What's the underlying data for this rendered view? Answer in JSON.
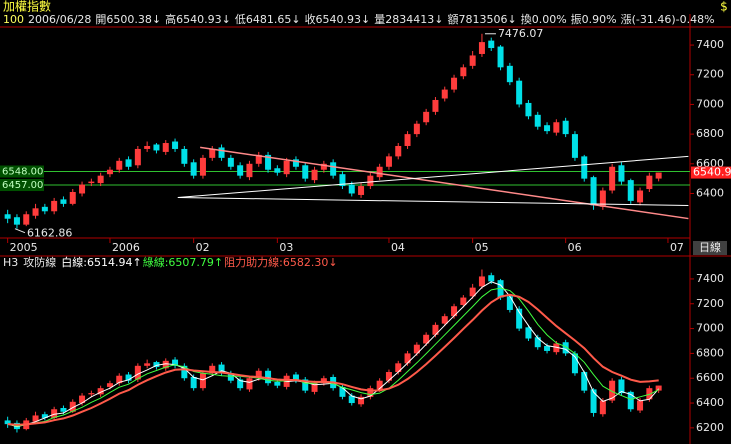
{
  "header": {
    "title": "加權指數",
    "icon": "$"
  },
  "chart_data": [
    {
      "type": "candlestick",
      "info": [
        {
          "text": "100",
          "color": "#ffff60"
        },
        {
          "text": "2006/06/28",
          "color": "#e8e8e8"
        },
        {
          "text": "開6500.38↓",
          "color": "#e8e8e8"
        },
        {
          "text": "高6540.93↓",
          "color": "#e8e8e8"
        },
        {
          "text": "低6481.65↓",
          "color": "#e8e8e8"
        },
        {
          "text": "收6540.93↓",
          "color": "#e8e8e8"
        },
        {
          "text": "量2834413↓",
          "color": "#e8e8e8"
        },
        {
          "text": "額7813506↓",
          "color": "#e8e8e8"
        },
        {
          "text": "換0.00%",
          "color": "#e8e8e8"
        },
        {
          "text": "振0.90%",
          "color": "#e8e8e8"
        },
        {
          "text": "漲(-31.46)-0.48%",
          "color": "#e8e8e8"
        }
      ],
      "categories": [
        "2005",
        null,
        null,
        null,
        null,
        null,
        null,
        null,
        null,
        null,
        null,
        "2006",
        null,
        null,
        null,
        null,
        null,
        null,
        null,
        null,
        "02",
        null,
        null,
        null,
        null,
        null,
        null,
        null,
        null,
        "03",
        null,
        null,
        null,
        null,
        null,
        null,
        null,
        null,
        null,
        null,
        null,
        "04",
        null,
        null,
        null,
        null,
        null,
        null,
        null,
        null,
        "05",
        null,
        null,
        null,
        null,
        null,
        null,
        null,
        null,
        null,
        "06",
        null,
        null,
        null,
        null,
        null,
        null,
        null,
        null,
        null,
        null,
        "07"
      ],
      "open": [
        6260,
        6240,
        6190,
        6250,
        6310,
        6280,
        6360,
        6330,
        6400,
        6470,
        6470,
        6530,
        6560,
        6630,
        6590,
        6700,
        6730,
        6680,
        6750,
        6700,
        6610,
        6520,
        6640,
        6710,
        6640,
        6590,
        6510,
        6600,
        6660,
        6570,
        6530,
        6630,
        6590,
        6490,
        6560,
        6610,
        6530,
        6460,
        6390,
        6450,
        6510,
        6580,
        6650,
        6720,
        6800,
        6880,
        6950,
        7040,
        7100,
        7190,
        7260,
        7340,
        7430,
        7390,
        7260,
        7160,
        7010,
        6930,
        6860,
        6810,
        6890,
        6800,
        6650,
        6510,
        6310,
        6420,
        6590,
        6490,
        6340,
        6430,
        6500.38,
        null
      ],
      "high": [
        6290,
        6260,
        6280,
        6330,
        6330,
        6370,
        6380,
        6430,
        6480,
        6500,
        6540,
        6580,
        6640,
        6650,
        6720,
        6750,
        6740,
        6760,
        6770,
        6720,
        6630,
        6660,
        6720,
        6730,
        6660,
        6610,
        6620,
        6680,
        6680,
        6590,
        6640,
        6650,
        6610,
        6580,
        6620,
        6630,
        6550,
        6480,
        6470,
        6540,
        6600,
        6670,
        6740,
        6820,
        6890,
        6970,
        7050,
        7120,
        7200,
        7270,
        7360,
        7476.07,
        7450,
        7400,
        7280,
        7180,
        7030,
        6950,
        6880,
        6900,
        6910,
        6820,
        6660,
        6520,
        6440,
        6600,
        6610,
        6500,
        6440,
        6540,
        6540.93,
        null
      ],
      "low": [
        6200,
        6162.86,
        6180,
        6230,
        6260,
        6260,
        6310,
        6320,
        6380,
        6450,
        6450,
        6510,
        6540,
        6560,
        6570,
        6680,
        6670,
        6660,
        6680,
        6580,
        6500,
        6500,
        6620,
        6620,
        6560,
        6500,
        6490,
        6580,
        6540,
        6520,
        6510,
        6560,
        6480,
        6470,
        6540,
        6500,
        6430,
        6380,
        6370,
        6430,
        6490,
        6560,
        6630,
        6700,
        6780,
        6860,
        6930,
        7020,
        7080,
        7170,
        7240,
        7320,
        7360,
        7230,
        7130,
        6980,
        6900,
        6830,
        6800,
        6790,
        6780,
        6620,
        6480,
        6290,
        6290,
        6400,
        6460,
        6330,
        6320,
        6410,
        6481.65,
        null
      ],
      "close": [
        6230,
        6190,
        6260,
        6300,
        6280,
        6350,
        6330,
        6410,
        6460,
        6480,
        6520,
        6560,
        6620,
        6580,
        6700,
        6720,
        6690,
        6740,
        6700,
        6600,
        6520,
        6640,
        6700,
        6640,
        6580,
        6520,
        6600,
        6660,
        6560,
        6540,
        6620,
        6580,
        6500,
        6560,
        6600,
        6520,
        6450,
        6400,
        6450,
        6520,
        6580,
        6650,
        6720,
        6800,
        6870,
        6950,
        7030,
        7100,
        7180,
        7250,
        7330,
        7420,
        7380,
        7250,
        7150,
        7000,
        6920,
        6850,
        6820,
        6880,
        6800,
        6640,
        6500,
        6320,
        6420,
        6580,
        6480,
        6350,
        6420,
        6520,
        6540.93,
        null
      ],
      "up_color": "#ff3c3c",
      "down_color": "#00e0e8",
      "ylim": [
        6100,
        7515
      ],
      "yticks": [
        6400,
        6600,
        6800,
        7000,
        7200,
        7400
      ],
      "levels": [
        {
          "value": 6548,
          "label": "6548.00"
        },
        {
          "value": 6457,
          "label": "6457.00"
        }
      ],
      "level_color": "#30c030",
      "trendlines": [
        {
          "color": "#ff8a8a",
          "from": [
            20.7,
            6711
          ],
          "to": [
            73.2,
            6231
          ]
        },
        {
          "color": "#ffffff",
          "from": [
            18.3,
            6373
          ],
          "to": [
            73.2,
            6650
          ]
        },
        {
          "color": "#ffffff",
          "from": [
            18.3,
            6373
          ],
          "to": [
            73.2,
            6319
          ]
        }
      ],
      "price_marker": {
        "value": 6540.93,
        "label": "6540.9"
      },
      "period": "日線"
    },
    {
      "type": "line",
      "title": "H3",
      "name": "攻防線",
      "series": [
        {
          "name": "白線:6514.94↑",
          "color": "#ffffff",
          "values": [
            6230,
            6210,
            6227,
            6250,
            6280,
            6310,
            6320,
            6363,
            6400,
            6450,
            6487,
            6520,
            6567,
            6587,
            6633,
            6667,
            6703,
            6717,
            6710,
            6680,
            6607,
            6587,
            6620,
            6660,
            6640,
            6580,
            6567,
            6593,
            6607,
            6587,
            6573,
            6580,
            6567,
            6547,
            6553,
            6560,
            6523,
            6457,
            6433,
            6457,
            6517,
            6583,
            6650,
            6723,
            6797,
            6873,
            6950,
            7027,
            7103,
            7177,
            7253,
            7333,
            7377,
            7350,
            7260,
            7133,
            7023,
            6923,
            6863,
            6850,
            6833,
            6773,
            6647,
            6487,
            6413,
            6440,
            6493,
            6470,
            6417,
            6430,
            6514.94
          ]
        },
        {
          "name": "綠線:6507.79↑",
          "color": "#40ff40",
          "values": [
            6230,
            6215,
            6225,
            6240,
            6252,
            6284,
            6304,
            6334,
            6366,
            6406,
            6440,
            6486,
            6528,
            6552,
            6596,
            6636,
            6662,
            6690,
            6710,
            6690,
            6654,
            6640,
            6632,
            6620,
            6616,
            6616,
            6608,
            6600,
            6584,
            6576,
            6580,
            6592,
            6560,
            6560,
            6572,
            6556,
            6526,
            6506,
            6484,
            6468,
            6480,
            6520,
            6584,
            6654,
            6724,
            6798,
            6874,
            6950,
            7026,
            7102,
            7178,
            7256,
            7312,
            7326,
            7306,
            7240,
            7140,
            7034,
            6948,
            6884,
            6854,
            6798,
            6728,
            6628,
            6536,
            6492,
            6460,
            6430,
            6450,
            6470,
            6507.79
          ]
        },
        {
          "name": "阻力助力線:6582.30↓",
          "color": "#ff5a4a",
          "values": [
            6230,
            6225,
            6228,
            6236,
            6244,
            6262,
            6276,
            6300,
            6330,
            6360,
            6396,
            6434,
            6476,
            6504,
            6548,
            6584,
            6616,
            6646,
            6668,
            6672,
            6662,
            6656,
            6650,
            6646,
            6636,
            6624,
            6614,
            6610,
            6600,
            6590,
            6586,
            6586,
            6576,
            6570,
            6570,
            6566,
            6552,
            6530,
            6510,
            6500,
            6502,
            6516,
            6548,
            6594,
            6650,
            6714,
            6782,
            6852,
            6924,
            6998,
            7070,
            7146,
            7212,
            7258,
            7272,
            7256,
            7214,
            7154,
            7086,
            7020,
            6962,
            6904,
            6842,
            6762,
            6692,
            6650,
            6620,
            6588,
            6570,
            6574,
            6582.3
          ]
        }
      ],
      "ylim": [
        6070,
        7472
      ],
      "yticks": [
        6200,
        6400,
        6600,
        6800,
        7000,
        7200,
        7400
      ]
    }
  ]
}
